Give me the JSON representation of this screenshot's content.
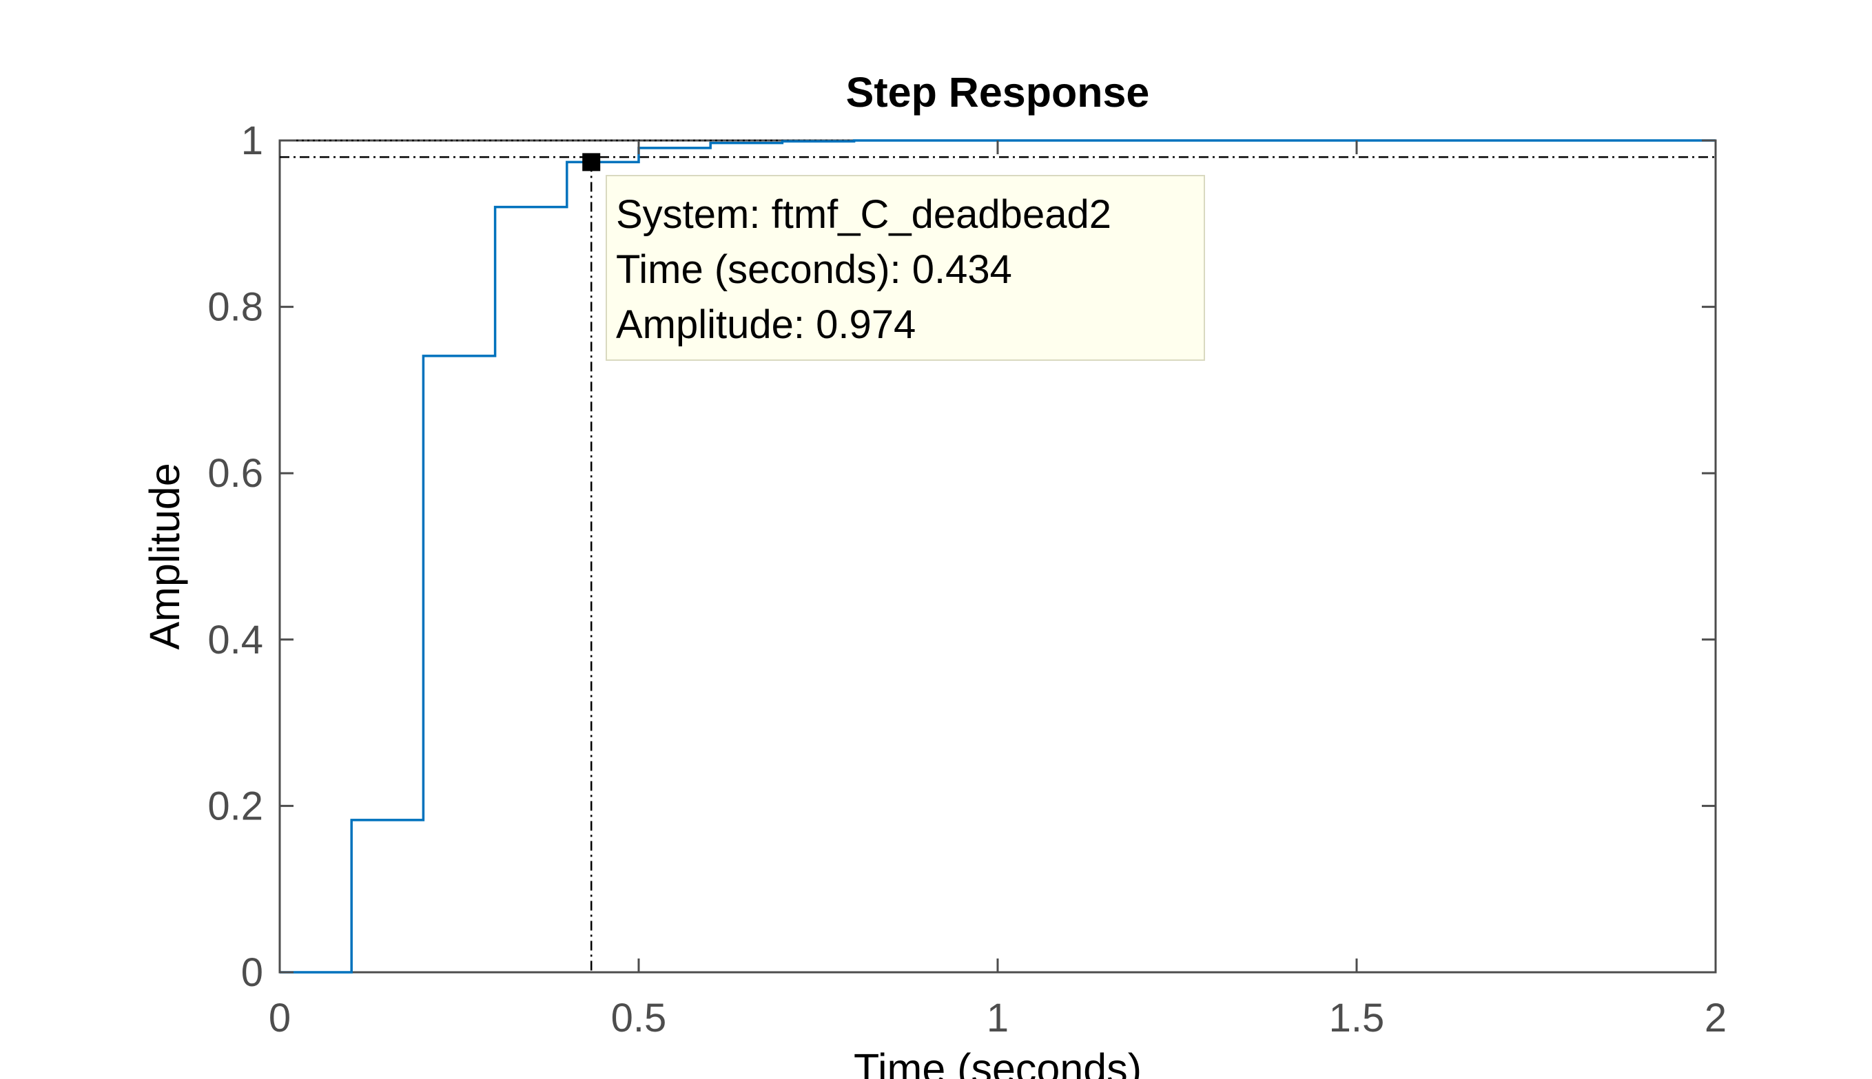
{
  "chart_data": {
    "type": "line",
    "title": "Step Response",
    "xlabel": "Time (seconds)",
    "ylabel": "Amplitude",
    "xlim": [
      0,
      2
    ],
    "ylim": [
      0,
      1
    ],
    "xticks": [
      0,
      0.5,
      1,
      1.5,
      2
    ],
    "xtick_labels": [
      "0",
      "0.5",
      "1",
      "1.5",
      "2"
    ],
    "yticks": [
      0,
      0.2,
      0.4,
      0.6,
      0.8,
      1
    ],
    "ytick_labels": [
      "0",
      "0.2",
      "0.4",
      "0.6",
      "0.8",
      "1"
    ],
    "grid": false,
    "series": [
      {
        "style": "step",
        "color": "#0072bd",
        "x": [
          0,
          0.1,
          0.2,
          0.3,
          0.4,
          0.5,
          0.6,
          0.7,
          0.8,
          2.0
        ],
        "y": [
          0,
          0.183,
          0.741,
          0.92,
          0.974,
          0.991,
          0.997,
          0.999,
          1.0,
          1.0
        ]
      }
    ],
    "reference_lines": [
      {
        "orientation": "horizontal",
        "value": 1.0,
        "style": "dotted"
      },
      {
        "orientation": "horizontal",
        "value": 0.98,
        "style": "dash-dot"
      },
      {
        "orientation": "vertical",
        "value": 0.434,
        "style": "dash-dot"
      }
    ],
    "datatip": {
      "x": 0.434,
      "y": 0.974,
      "lines": [
        "System: ftmf_C_deadbead2",
        "Time (seconds): 0.434",
        "Amplitude: 0.974"
      ],
      "background": "#ffffee"
    }
  }
}
